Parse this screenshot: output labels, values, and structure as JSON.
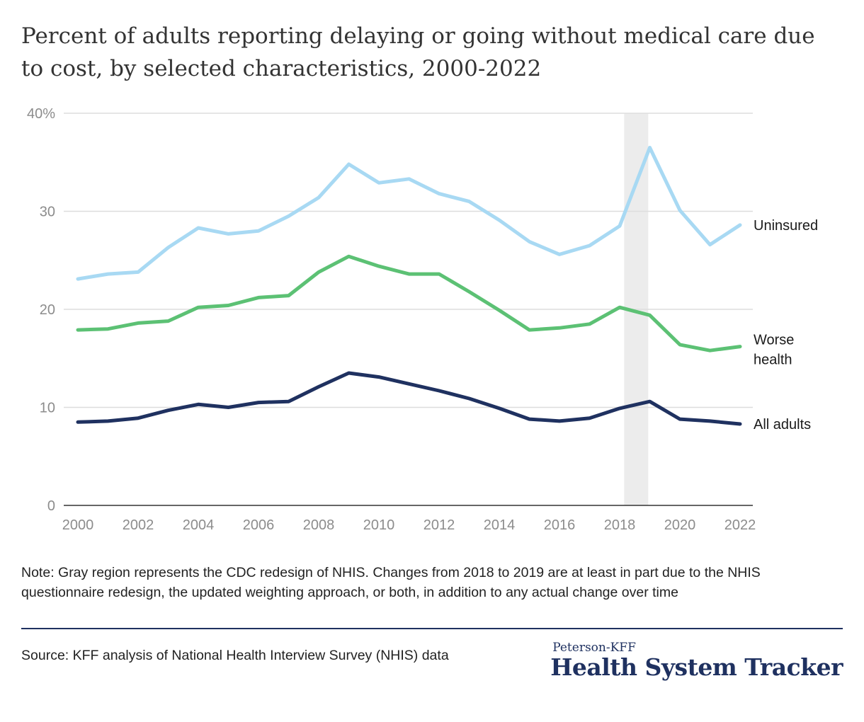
{
  "title": "Percent of adults reporting delaying or going without medical care due to cost, by selected characteristics, 2000-2022",
  "note": "Note: Gray region represents the CDC redesign of NHIS. Changes from 2018 to 2019 are at least in part due to the NHIS questionnaire redesign, the updated weighting approach, or both, in addition to any actual change over time",
  "source": "Source: KFF analysis of National Health Interview Survey (NHIS) data",
  "logo": {
    "top": "Peterson-KFF",
    "main": "Health System Tracker"
  },
  "colors": {
    "uninsured": "#a8d9f3",
    "worse_health": "#5cc174",
    "all_adults": "#1f3160",
    "shade": "#ececec",
    "grid": "#dddddd",
    "axis": "#333333"
  },
  "chart_data": {
    "type": "line",
    "title": "Percent of adults reporting delaying or going without medical care due to cost, by selected characteristics, 2000-2022",
    "xlabel": "",
    "ylabel": "",
    "x": [
      2000,
      2001,
      2002,
      2003,
      2004,
      2005,
      2006,
      2007,
      2008,
      2009,
      2010,
      2011,
      2012,
      2013,
      2014,
      2015,
      2016,
      2017,
      2018,
      2019,
      2020,
      2021,
      2022
    ],
    "xticks": [
      "2000",
      "2002",
      "2004",
      "2006",
      "2008",
      "2010",
      "2012",
      "2014",
      "2016",
      "2018",
      "2020",
      "2022"
    ],
    "xtick_values": [
      2000,
      2002,
      2004,
      2006,
      2008,
      2010,
      2012,
      2014,
      2016,
      2018,
      2020,
      2022
    ],
    "ylim": [
      0,
      40
    ],
    "yticks": [
      0,
      10,
      20,
      30,
      40
    ],
    "ytick_labels": [
      "0",
      "10",
      "20",
      "30",
      "40%"
    ],
    "grid": true,
    "shaded_region": {
      "from": 2018.15,
      "to": 2018.95
    },
    "series": [
      {
        "key": "uninsured",
        "name": "Uninsured",
        "label_lines": [
          "Uninsured"
        ],
        "values": [
          23.1,
          23.6,
          23.8,
          26.3,
          28.3,
          27.7,
          28.0,
          29.5,
          31.4,
          34.8,
          32.9,
          33.3,
          31.8,
          31.0,
          29.1,
          26.9,
          25.6,
          26.5,
          28.5,
          36.5,
          30.1,
          26.6,
          28.6
        ]
      },
      {
        "key": "worse_health",
        "name": "Worse health",
        "label_lines": [
          "Worse",
          "health"
        ],
        "values": [
          17.9,
          18.0,
          18.6,
          18.8,
          20.2,
          20.4,
          21.2,
          21.4,
          23.8,
          25.4,
          24.4,
          23.6,
          23.6,
          21.8,
          19.9,
          17.9,
          18.1,
          18.5,
          20.2,
          19.4,
          16.4,
          15.8,
          16.2
        ]
      },
      {
        "key": "all_adults",
        "name": "All adults",
        "label_lines": [
          "All adults"
        ],
        "values": [
          8.5,
          8.6,
          8.9,
          9.7,
          10.3,
          10.0,
          10.5,
          10.6,
          12.1,
          13.5,
          13.1,
          12.4,
          11.7,
          10.9,
          9.9,
          8.8,
          8.6,
          8.9,
          9.9,
          10.6,
          8.8,
          8.6,
          8.3
        ]
      }
    ]
  }
}
